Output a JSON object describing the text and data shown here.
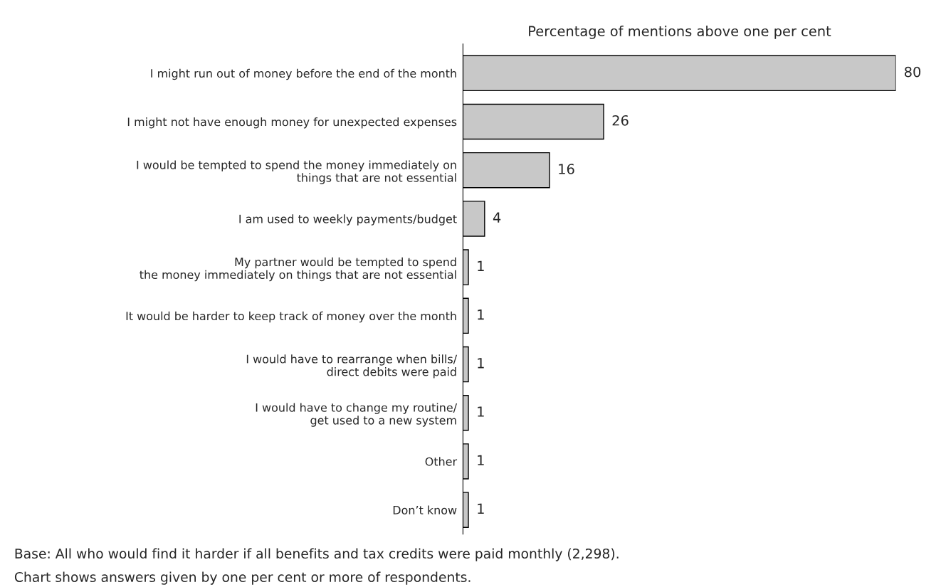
{
  "chart_data": {
    "type": "bar",
    "orientation": "horizontal",
    "title": "Percentage of mentions above one per cent",
    "categories": [
      "I might run out of money before the end of the month",
      "I might not have enough money for unexpected expenses",
      "I would be tempted to spend the money immediately on\nthings that are not essential",
      "I am used to weekly payments/budget",
      "My partner would be tempted to spend\nthe money immediately on things that are not essential",
      "It would be harder to keep track of money over the month",
      "I would have to rearrange when bills/\ndirect debits were paid",
      "I would have to change my routine/\nget used to a new system",
      "Other",
      "Don’t know"
    ],
    "values": [
      80,
      26,
      16,
      4,
      1,
      1,
      1,
      1,
      1,
      1
    ],
    "color": "#c8c8c8",
    "data_labels": true,
    "tick_labels": "y",
    "grid": false,
    "legend": false,
    "annotations": [
      "Base: All who would find it harder if all benefits and tax credits were paid monthly (2,298).",
      "Chart shows answers given by one per cent or more of respondents."
    ]
  }
}
